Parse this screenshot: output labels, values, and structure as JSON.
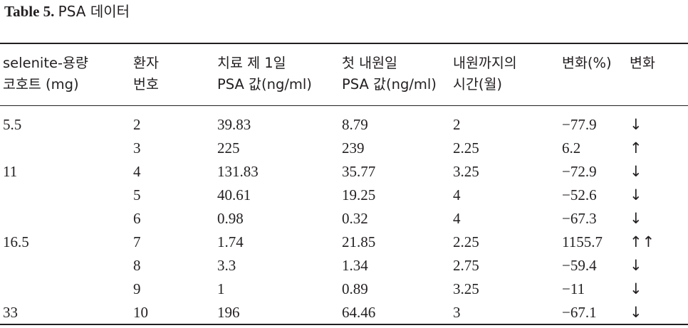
{
  "caption": {
    "label": "Table 5.",
    "text": "PSA 데이터"
  },
  "headers": [
    {
      "line1": "selenite-용량",
      "line2": "코호트 (mg)"
    },
    {
      "line1": "환자",
      "line2": "번호"
    },
    {
      "line1": "치료 제 1일",
      "line2": "PSA 값(ng/ml)"
    },
    {
      "line1": "첫 내원일",
      "line2": "PSA 값(ng/ml)"
    },
    {
      "line1": "내원까지의",
      "line2": "시간(월)"
    },
    {
      "line1": "변화(%)",
      "line2": ""
    },
    {
      "line1": "변화",
      "line2": ""
    }
  ],
  "rows": [
    {
      "cohort": "5.5",
      "patient": "2",
      "psa_day1": "39.83",
      "psa_first_visit": "8.79",
      "months": "2",
      "change_pct": "−77.9",
      "direction": "↓"
    },
    {
      "cohort": "",
      "patient": "3",
      "psa_day1": "225",
      "psa_first_visit": "239",
      "months": "2.25",
      "change_pct": "6.2",
      "direction": "↑"
    },
    {
      "cohort": "11",
      "patient": "4",
      "psa_day1": "131.83",
      "psa_first_visit": "35.77",
      "months": "3.25",
      "change_pct": "−72.9",
      "direction": "↓"
    },
    {
      "cohort": "",
      "patient": "5",
      "psa_day1": "40.61",
      "psa_first_visit": "19.25",
      "months": "4",
      "change_pct": "−52.6",
      "direction": "↓"
    },
    {
      "cohort": "",
      "patient": "6",
      "psa_day1": "0.98",
      "psa_first_visit": "0.32",
      "months": "4",
      "change_pct": "−67.3",
      "direction": "↓"
    },
    {
      "cohort": "16.5",
      "patient": "7",
      "psa_day1": "1.74",
      "psa_first_visit": "21.85",
      "months": "2.25",
      "change_pct": "1155.7",
      "direction": "↑↑"
    },
    {
      "cohort": "",
      "patient": "8",
      "psa_day1": "3.3",
      "psa_first_visit": "1.34",
      "months": "2.75",
      "change_pct": "−59.4",
      "direction": "↓"
    },
    {
      "cohort": "",
      "patient": "9",
      "psa_day1": "1",
      "psa_first_visit": "0.89",
      "months": "3.25",
      "change_pct": "−11",
      "direction": "↓"
    },
    {
      "cohort": "33",
      "patient": "10",
      "psa_day1": "196",
      "psa_first_visit": "64.46",
      "months": "3",
      "change_pct": "−67.1",
      "direction": "↓"
    }
  ]
}
